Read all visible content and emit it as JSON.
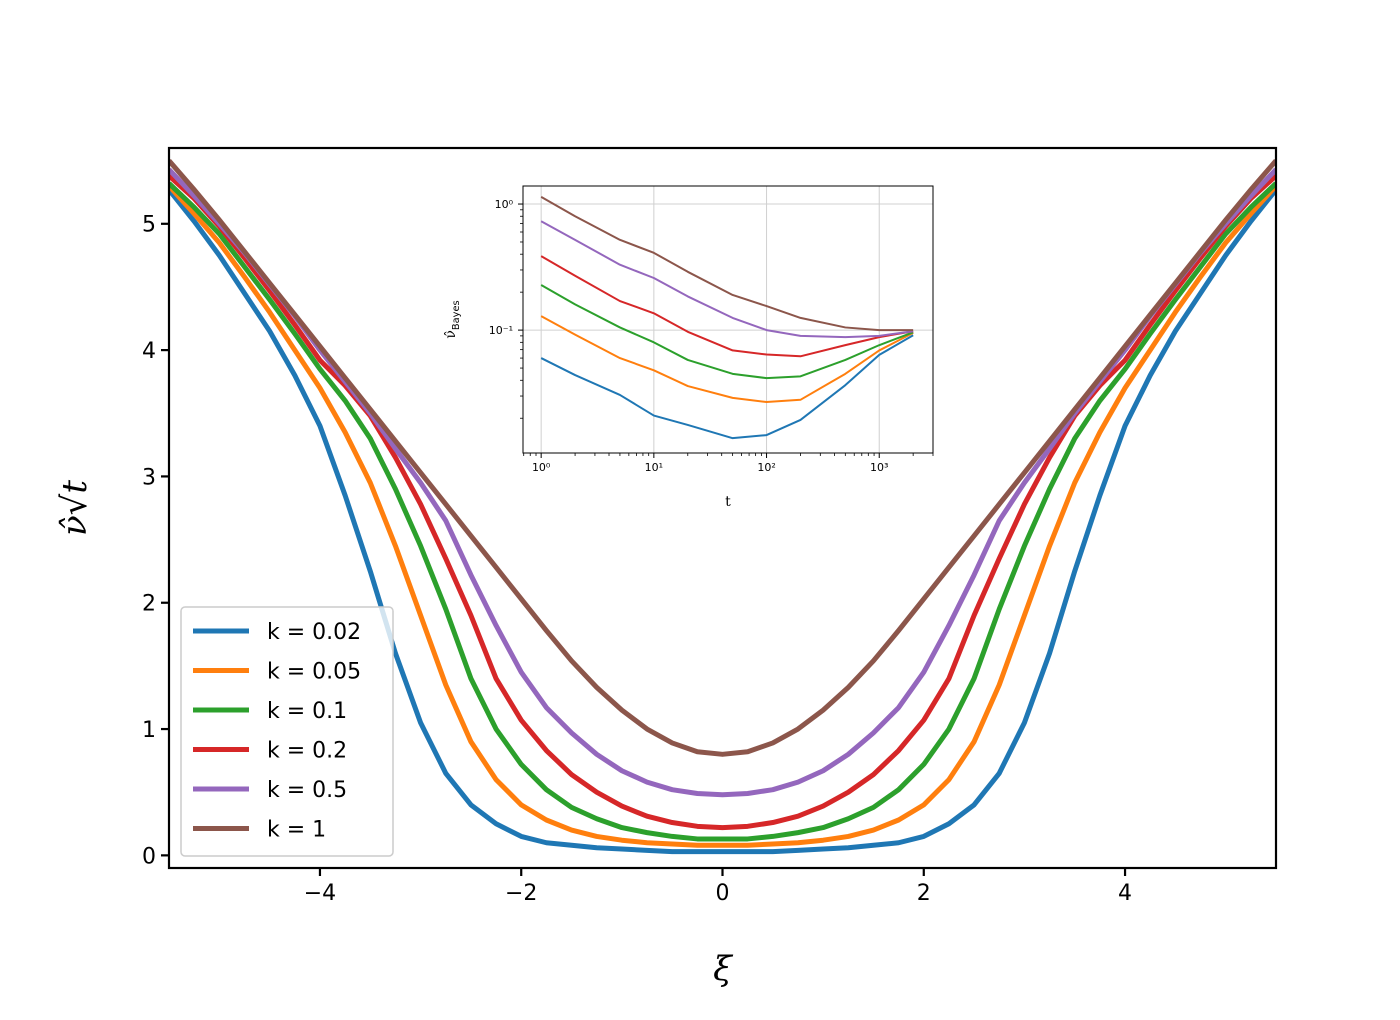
{
  "chart_data": [
    {
      "type": "line",
      "xlabel": "ξ",
      "ylabel": "ν̂√t",
      "x": [
        -5.5,
        -5.25,
        -5,
        -4.75,
        -4.5,
        -4.25,
        -4,
        -3.75,
        -3.5,
        -3.25,
        -3,
        -2.75,
        -2.5,
        -2.25,
        -2,
        -1.75,
        -1.5,
        -1.25,
        -1,
        -0.75,
        -0.5,
        -0.25,
        0,
        0.25,
        0.5,
        0.75,
        1,
        1.25,
        1.5,
        1.75,
        2,
        2.25,
        2.5,
        2.75,
        3,
        3.25,
        3.5,
        3.75,
        4,
        4.25,
        4.5,
        4.75,
        5,
        5.25,
        5.5
      ],
      "xlim": [
        -5.5,
        5.5
      ],
      "ylim": [
        -0.1,
        5.6
      ],
      "xticks": [
        {
          "value": -4,
          "label": "−4"
        },
        {
          "value": -2,
          "label": "−2"
        },
        0,
        2,
        4
      ],
      "yticks": [
        0,
        1,
        2,
        3,
        4,
        5
      ],
      "grid": false,
      "legend": "lower left",
      "series": [
        {
          "name": "k = 0.02",
          "color": "#1f77b4",
          "values": [
            5.27,
            5.02,
            4.75,
            4.45,
            4.15,
            3.8,
            3.4,
            2.85,
            2.25,
            1.6,
            1.05,
            0.65,
            0.4,
            0.25,
            0.15,
            0.1,
            0.08,
            0.06,
            0.05,
            0.04,
            0.03,
            0.03,
            0.03,
            0.03,
            0.03,
            0.04,
            0.05,
            0.06,
            0.08,
            0.1,
            0.15,
            0.25,
            0.4,
            0.65,
            1.05,
            1.6,
            2.25,
            2.85,
            3.4,
            3.8,
            4.15,
            4.45,
            4.75,
            5.02,
            5.27
          ]
        },
        {
          "name": "k = 0.05",
          "color": "#ff7f0e",
          "values": [
            5.3,
            5.08,
            4.85,
            4.58,
            4.3,
            4.0,
            3.7,
            3.35,
            2.95,
            2.45,
            1.9,
            1.35,
            0.9,
            0.6,
            0.4,
            0.28,
            0.2,
            0.15,
            0.12,
            0.1,
            0.09,
            0.08,
            0.08,
            0.08,
            0.09,
            0.1,
            0.12,
            0.15,
            0.2,
            0.28,
            0.4,
            0.6,
            0.9,
            1.35,
            1.9,
            2.45,
            2.95,
            3.35,
            3.7,
            4.0,
            4.3,
            4.58,
            4.85,
            5.08,
            5.3
          ]
        },
        {
          "name": "k = 0.1",
          "color": "#2ca02c",
          "values": [
            5.32,
            5.13,
            4.92,
            4.66,
            4.4,
            4.13,
            3.85,
            3.6,
            3.3,
            2.9,
            2.45,
            1.95,
            1.4,
            1.0,
            0.72,
            0.52,
            0.38,
            0.29,
            0.22,
            0.18,
            0.15,
            0.13,
            0.13,
            0.13,
            0.15,
            0.18,
            0.22,
            0.29,
            0.38,
            0.52,
            0.72,
            1.0,
            1.4,
            1.95,
            2.45,
            2.9,
            3.3,
            3.6,
            3.85,
            4.13,
            4.4,
            4.66,
            4.92,
            5.13,
            5.32
          ]
        },
        {
          "name": "k = 0.2",
          "color": "#d62728",
          "values": [
            5.38,
            5.2,
            4.98,
            4.73,
            4.47,
            4.2,
            3.92,
            3.72,
            3.48,
            3.15,
            2.78,
            2.35,
            1.9,
            1.4,
            1.07,
            0.83,
            0.64,
            0.5,
            0.39,
            0.31,
            0.26,
            0.23,
            0.22,
            0.23,
            0.26,
            0.31,
            0.39,
            0.5,
            0.64,
            0.83,
            1.07,
            1.4,
            1.9,
            2.35,
            2.78,
            3.15,
            3.48,
            3.72,
            3.92,
            4.2,
            4.47,
            4.73,
            4.98,
            5.2,
            5.38
          ]
        },
        {
          "name": "k = 0.5",
          "color": "#9467bd",
          "values": [
            5.43,
            5.22,
            5.0,
            4.77,
            4.52,
            4.27,
            4.0,
            3.75,
            3.5,
            3.22,
            2.95,
            2.65,
            2.22,
            1.82,
            1.45,
            1.17,
            0.97,
            0.8,
            0.67,
            0.58,
            0.52,
            0.49,
            0.48,
            0.49,
            0.52,
            0.58,
            0.67,
            0.8,
            0.97,
            1.17,
            1.45,
            1.82,
            2.22,
            2.65,
            2.95,
            3.22,
            3.5,
            3.75,
            4.0,
            4.27,
            4.52,
            4.77,
            5.0,
            5.22,
            5.43
          ]
        },
        {
          "name": "k = 1",
          "color": "#8c564b",
          "values": [
            5.5,
            5.27,
            5.03,
            4.78,
            4.53,
            4.28,
            4.03,
            3.78,
            3.53,
            3.28,
            3.03,
            2.78,
            2.53,
            2.28,
            2.03,
            1.78,
            1.54,
            1.33,
            1.15,
            1.0,
            0.89,
            0.82,
            0.8,
            0.82,
            0.89,
            1.0,
            1.15,
            1.33,
            1.54,
            1.78,
            2.03,
            2.28,
            2.53,
            2.78,
            3.03,
            3.28,
            3.53,
            3.78,
            4.03,
            4.28,
            4.53,
            4.78,
            5.03,
            5.27,
            5.5
          ]
        }
      ]
    },
    {
      "type": "line",
      "xlabel": "t",
      "ylabel": [
        "ν̂",
        "Bayes"
      ],
      "xscale": "log",
      "yscale": "log",
      "x": [
        1,
        2,
        5,
        10,
        20,
        50,
        100,
        200,
        500,
        1000,
        2000
      ],
      "xlim": [
        0.69,
        3000
      ],
      "ylim": [
        0.0106,
        1.39
      ],
      "xticks": [
        {
          "value": 1,
          "label": "10⁰"
        },
        {
          "value": 10,
          "label": "10¹"
        },
        {
          "value": 100,
          "label": "10²"
        },
        {
          "value": 1000,
          "label": "10³"
        }
      ],
      "yticks": [
        {
          "value": 1,
          "label": "10⁰"
        },
        {
          "value": 0.1,
          "label": "10⁻¹"
        }
      ],
      "grid": true,
      "series": [
        {
          "color": "#1f77b4",
          "values": [
            0.06,
            0.044,
            0.0306,
            0.021,
            0.0177,
            0.0139,
            0.0147,
            0.0194,
            0.0366,
            0.0636,
            0.091
          ]
        },
        {
          "color": "#ff7f0e",
          "values": [
            0.129,
            0.092,
            0.06,
            0.048,
            0.036,
            0.029,
            0.0269,
            0.028,
            0.045,
            0.069,
            0.095
          ]
        },
        {
          "color": "#2ca02c",
          "values": [
            0.228,
            0.16,
            0.105,
            0.08,
            0.058,
            0.045,
            0.0416,
            0.043,
            0.058,
            0.076,
            0.096
          ]
        },
        {
          "color": "#d62728",
          "values": [
            0.386,
            0.27,
            0.17,
            0.136,
            0.097,
            0.069,
            0.064,
            0.062,
            0.076,
            0.088,
            0.098
          ]
        },
        {
          "color": "#9467bd",
          "values": [
            0.73,
            0.52,
            0.33,
            0.259,
            0.185,
            0.125,
            0.1,
            0.09,
            0.088,
            0.09,
            0.098
          ]
        },
        {
          "color": "#8c564b",
          "values": [
            1.14,
            0.8,
            0.52,
            0.41,
            0.29,
            0.19,
            0.155,
            0.125,
            0.105,
            0.1,
            0.1
          ]
        }
      ]
    }
  ]
}
